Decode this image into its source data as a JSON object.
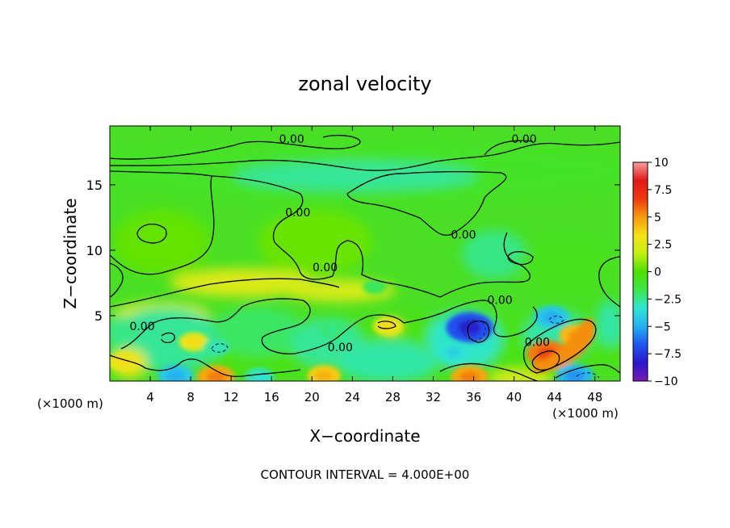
{
  "chart_data": {
    "type": "heatmap",
    "title": "zonal velocity",
    "xlabel": "X−coordinate",
    "ylabel": "Z−coordinate",
    "x_unit_left": "(×1000 m)",
    "x_unit_right": "(×1000 m)",
    "footer": "CONTOUR INTERVAL = 4.000E+00",
    "xlim": [
      0,
      50.5
    ],
    "ylim": [
      0,
      19.5
    ],
    "x_ticks": [
      4,
      8,
      12,
      16,
      20,
      24,
      28,
      32,
      36,
      40,
      44,
      48
    ],
    "y_ticks": [
      5,
      10,
      15
    ],
    "colorbar": {
      "range": [
        -10,
        10
      ],
      "tick_values": [
        10,
        7.5,
        5,
        2.5,
        0,
        -2.5,
        -5,
        -7.5,
        -10
      ],
      "tick_labels": [
        "10",
        "7.5",
        "5",
        "2.5",
        "0",
        "−2.5",
        "−5",
        "−7.5",
        "−10"
      ],
      "colors": [
        "#7a18b8",
        "#2a18c8",
        "#1f55f0",
        "#25b0f0",
        "#2ee6d2",
        "#3ee64a",
        "#4ce000",
        "#c6ef14",
        "#f4e214",
        "#f59a10",
        "#ee3a10",
        "#e21818",
        "#f5a0a0"
      ]
    },
    "contour_labels": [
      {
        "text": "0.00",
        "x": 18.0,
        "z": 18.5
      },
      {
        "text": "0.00",
        "x": 41.0,
        "z": 18.5
      },
      {
        "text": "0.00",
        "x": 18.6,
        "z": 12.9
      },
      {
        "text": "0.00",
        "x": 35.0,
        "z": 11.2
      },
      {
        "text": "0.00",
        "x": 21.3,
        "z": 8.7
      },
      {
        "text": "0.00",
        "x": 38.6,
        "z": 6.2
      },
      {
        "text": "0.00",
        "x": 3.2,
        "z": 4.2
      },
      {
        "text": "0.00",
        "x": 22.8,
        "z": 2.6
      },
      {
        "text": "0.00",
        "x": 42.3,
        "z": 3.0
      }
    ],
    "features": [
      {
        "x": 35.6,
        "z": 4.1,
        "value": -8.0
      },
      {
        "x": 35.6,
        "z": 0.3,
        "value": 5.5
      },
      {
        "x": 46.2,
        "z": 3.5,
        "value": 5.0
      },
      {
        "x": 43.3,
        "z": 2.1,
        "value": 6.5
      },
      {
        "x": 10.5,
        "z": 0.3,
        "value": 5.5
      },
      {
        "x": 21.2,
        "z": 0.4,
        "value": 4.5
      },
      {
        "x": 46.0,
        "z": 0.4,
        "value": -5.5
      },
      {
        "x": 6.5,
        "z": 0.4,
        "value": -5.0
      },
      {
        "x": 14.8,
        "z": 0.3,
        "value": -3.5
      },
      {
        "x": 43.7,
        "z": 4.9,
        "value": -5.0
      },
      {
        "x": 8.3,
        "z": 3.0,
        "value": 3.5
      },
      {
        "x": 27.5,
        "z": 4.2,
        "value": 3.5
      },
      {
        "x": 1.3,
        "z": 1.5,
        "value": 3.5
      },
      {
        "x": 10.6,
        "z": 2.6,
        "value": -3.0
      },
      {
        "x": 34.0,
        "z": 2.2,
        "value": -4.0
      },
      {
        "x": 22.0,
        "z": 3.9,
        "value": -2.5
      },
      {
        "x": 26.2,
        "z": 7.2,
        "value": -2.0
      }
    ]
  }
}
